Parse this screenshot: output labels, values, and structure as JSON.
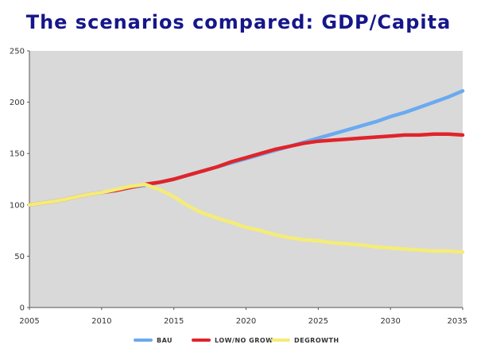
{
  "chart_data": {
    "type": "line",
    "title": "The scenarios compared: GDP/Capita",
    "xlabel": "",
    "ylabel": "",
    "xlim": [
      2005,
      2035
    ],
    "ylim": [
      0,
      250
    ],
    "x_ticks": [
      "2005",
      "2010",
      "2015",
      "2020",
      "2025",
      "2030",
      "2035"
    ],
    "y_ticks": [
      "0",
      "50",
      "100",
      "150",
      "200",
      "250"
    ],
    "grid": false,
    "legend_position": "bottom",
    "plot_background": "#d9d9d9",
    "series": [
      {
        "name": "BAU",
        "color": "#6aaaf0",
        "x": [
          2005,
          2006,
          2007,
          2008,
          2009,
          2010,
          2011,
          2012,
          2013,
          2014,
          2015,
          2016,
          2017,
          2018,
          2019,
          2020,
          2021,
          2022,
          2023,
          2024,
          2025,
          2026,
          2027,
          2028,
          2029,
          2030,
          2031,
          2032,
          2033,
          2034,
          2035
        ],
        "y": [
          100,
          102,
          104,
          107,
          110,
          112,
          114,
          117,
          119,
          122,
          125,
          129,
          133,
          137,
          141,
          145,
          149,
          153,
          157,
          161,
          165,
          169,
          173,
          177,
          181,
          186,
          190,
          195,
          200,
          205,
          211
        ]
      },
      {
        "name": "LOW/NO GROW",
        "color": "#e0242a",
        "x": [
          2005,
          2006,
          2007,
          2008,
          2009,
          2010,
          2011,
          2012,
          2013,
          2014,
          2015,
          2016,
          2017,
          2018,
          2019,
          2020,
          2021,
          2022,
          2023,
          2024,
          2025,
          2026,
          2027,
          2028,
          2029,
          2030,
          2031,
          2032,
          2033,
          2034,
          2035
        ],
        "y": [
          100,
          102,
          104,
          107,
          110,
          112,
          114,
          117,
          120,
          122,
          125,
          129,
          133,
          137,
          142,
          146,
          150,
          154,
          157,
          160,
          162,
          163,
          164,
          165,
          166,
          167,
          168,
          168,
          169,
          169,
          168
        ]
      },
      {
        "name": "DEGROWTH",
        "color": "#f4ec78",
        "x": [
          2005,
          2006,
          2007,
          2008,
          2009,
          2010,
          2011,
          2012,
          2013,
          2014,
          2015,
          2016,
          2017,
          2018,
          2019,
          2020,
          2021,
          2022,
          2023,
          2024,
          2025,
          2026,
          2027,
          2028,
          2029,
          2030,
          2031,
          2032,
          2033,
          2034,
          2035
        ],
        "y": [
          100,
          102,
          104,
          107,
          110,
          112,
          115,
          118,
          120,
          115,
          108,
          99,
          92,
          87,
          83,
          78,
          75,
          71,
          68,
          66,
          65,
          63,
          62,
          61,
          59,
          58,
          57,
          56,
          55,
          55,
          54
        ]
      }
    ]
  }
}
